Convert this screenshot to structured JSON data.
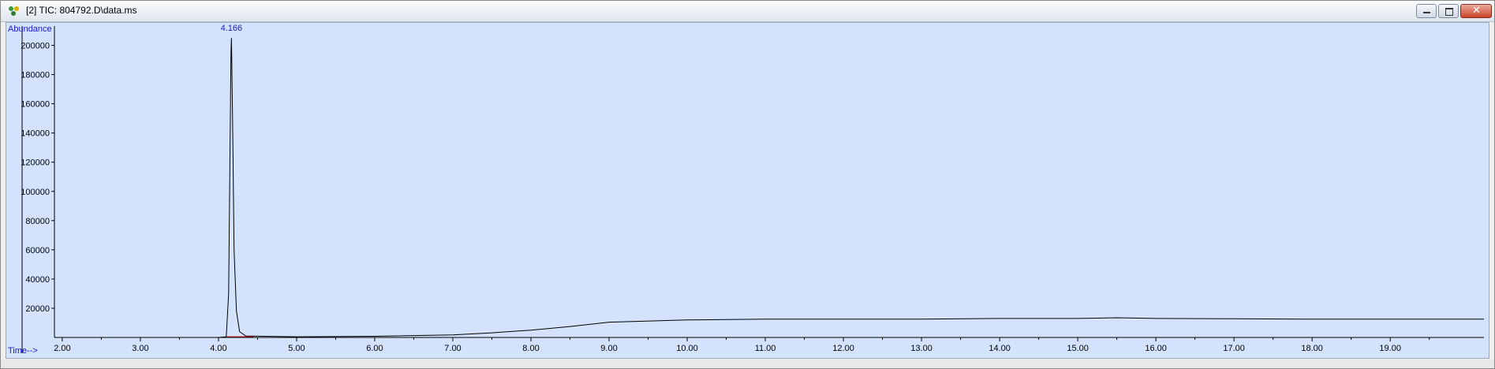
{
  "window": {
    "title": "[2] TIC: 804792.D\\data.ms",
    "icon": "chromatogram-app-icon",
    "controls": [
      "minimize-icon",
      "restore-icon",
      "close-icon"
    ]
  },
  "colors": {
    "plot_background": "#d3e3fd",
    "trace": "#000000",
    "label_blue": "#1a1acc",
    "baseline_marker": "#d02020"
  },
  "chart_data": {
    "type": "line",
    "ylabel": "Abundance",
    "xlabel": "Time-->",
    "xlim": [
      1.9,
      20.2
    ],
    "ylim": [
      0,
      210000
    ],
    "x_ticks": [
      "2.00",
      "3.00",
      "4.00",
      "5.00",
      "6.00",
      "7.00",
      "8.00",
      "9.00",
      "10.00",
      "11.00",
      "12.00",
      "13.00",
      "14.00",
      "15.00",
      "16.00",
      "17.00",
      "18.00",
      "19.00"
    ],
    "y_ticks": [
      "20000",
      "40000",
      "60000",
      "80000",
      "100000",
      "120000",
      "140000",
      "160000",
      "180000",
      "200000"
    ],
    "y_tick_values": [
      20000,
      40000,
      60000,
      80000,
      100000,
      120000,
      140000,
      160000,
      180000,
      200000
    ],
    "peak_label": "4.166",
    "peak_time": 4.166,
    "series": [
      {
        "x": [
          1.9,
          3.0,
          4.0,
          4.1,
          4.13,
          4.15,
          4.16,
          4.166,
          4.18,
          4.2,
          4.23,
          4.27,
          4.35,
          5.0,
          6.0,
          7.0,
          7.5,
          8.0,
          8.5,
          9.0,
          10.0,
          11.0,
          12.0,
          13.0,
          14.0,
          15.0,
          15.5,
          16.0,
          17.0,
          18.0,
          19.0,
          20.2
        ],
        "y": [
          0,
          0,
          0,
          500,
          30000,
          140000,
          195000,
          205000,
          150000,
          60000,
          18000,
          4000,
          1000,
          500,
          800,
          1800,
          3200,
          5000,
          7500,
          10500,
          12000,
          12500,
          12500,
          12500,
          13000,
          13000,
          13500,
          13000,
          12800,
          12500,
          12500,
          12500
        ]
      }
    ]
  }
}
